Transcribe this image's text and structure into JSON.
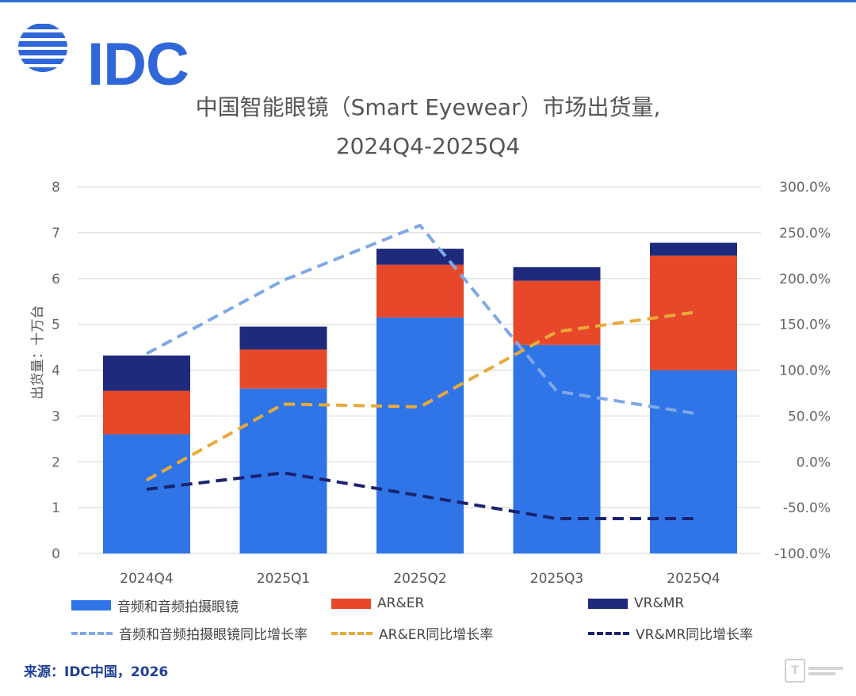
{
  "brand": {
    "logo_text": "IDC"
  },
  "title_line1": "中国智能眼镜（Smart Eyewear）市场出货量,",
  "title_line2": "2024Q4-2025Q4",
  "source": "来源：IDC中国，2026",
  "colors": {
    "audio": "#2f75e8",
    "arer": "#e8482a",
    "vrmr": "#1e2b7c",
    "audio_yoy": "#7fa8e6",
    "arer_yoy": "#e9a93a",
    "vrmr_yoy": "#1a2370",
    "grid": "#e2e2e2"
  },
  "chart_data": {
    "type": "bar",
    "stacked": true,
    "categories": [
      "2024Q4",
      "2025Q1",
      "2025Q2",
      "2025Q3",
      "2025Q4"
    ],
    "ylabel": "出货量：十万台",
    "ylim": [
      0,
      8
    ],
    "y_ticks": [
      "0",
      "1",
      "2",
      "3",
      "4",
      "5",
      "6",
      "7",
      "8"
    ],
    "y2lim": [
      -100,
      300
    ],
    "y2_ticks": [
      "-100.0%",
      "-50.0%",
      "0.0%",
      "50.0%",
      "100.0%",
      "150.0%",
      "200.0%",
      "250.0%",
      "300.0%"
    ],
    "grid": true,
    "legend_position": "bottom",
    "series": [
      {
        "name": "音频和音频拍摄眼镜",
        "kind": "bar",
        "color_key": "audio",
        "values": [
          2.6,
          3.6,
          5.15,
          4.55,
          4.0
        ]
      },
      {
        "name": "AR&ER",
        "kind": "bar",
        "color_key": "arer",
        "values": [
          0.95,
          0.85,
          1.15,
          1.4,
          2.5
        ]
      },
      {
        "name": "VR&MR",
        "kind": "bar",
        "color_key": "vrmr",
        "values": [
          0.77,
          0.5,
          0.35,
          0.3,
          0.28
        ]
      },
      {
        "name": "音频和音频拍摄眼镜同比增长率",
        "kind": "line",
        "axis": "right",
        "color_key": "audio_yoy",
        "values": [
          118,
          198,
          258,
          77,
          53
        ]
      },
      {
        "name": "AR&ER同比增长率",
        "kind": "line",
        "axis": "right",
        "color_key": "arer_yoy",
        "values": [
          -20,
          63,
          60,
          142,
          163
        ]
      },
      {
        "name": "VR&MR同比增长率",
        "kind": "line",
        "axis": "right",
        "color_key": "vrmr_yoy",
        "values": [
          -30,
          -12,
          -37,
          -62,
          -62
        ]
      }
    ]
  }
}
